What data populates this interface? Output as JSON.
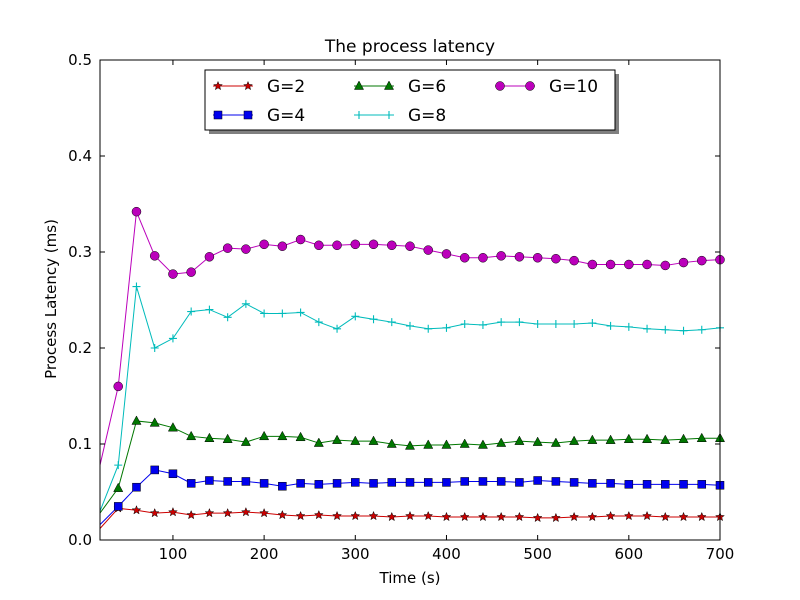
{
  "chart_data": {
    "type": "line",
    "title": "The process latency",
    "xlabel": "Time (s)",
    "ylabel": "Process Latency (ms)",
    "xlim": [
      20,
      700
    ],
    "ylim": [
      0.0,
      0.5
    ],
    "xticks": [
      100,
      200,
      300,
      400,
      500,
      600,
      700
    ],
    "yticks": [
      0.0,
      0.1,
      0.2,
      0.3,
      0.4,
      0.5
    ],
    "xtick_labels": [
      "100",
      "200",
      "300",
      "400",
      "500",
      "600",
      "700"
    ],
    "ytick_labels": [
      "0.0",
      "0.1",
      "0.2",
      "0.3",
      "0.4",
      "0.5"
    ],
    "grid": false,
    "legend_position": "top-center",
    "x": [
      20,
      40,
      60,
      80,
      100,
      120,
      140,
      160,
      180,
      200,
      220,
      240,
      260,
      280,
      300,
      320,
      340,
      360,
      380,
      400,
      420,
      440,
      460,
      480,
      500,
      520,
      540,
      560,
      580,
      600,
      620,
      640,
      660,
      680,
      700
    ],
    "series": [
      {
        "name": "G=2",
        "color": "#cc0000",
        "marker": "star",
        "values": [
          0.012,
          0.033,
          0.031,
          0.028,
          0.029,
          0.026,
          0.028,
          0.028,
          0.029,
          0.028,
          0.026,
          0.025,
          0.026,
          0.025,
          0.025,
          0.025,
          0.024,
          0.025,
          0.025,
          0.024,
          0.024,
          0.024,
          0.024,
          0.024,
          0.023,
          0.023,
          0.024,
          0.024,
          0.025,
          0.025,
          0.025,
          0.024,
          0.024,
          0.024,
          0.024
        ]
      },
      {
        "name": "G=4",
        "color": "#0000ee",
        "marker": "square",
        "values": [
          0.016,
          0.035,
          0.055,
          0.073,
          0.069,
          0.059,
          0.062,
          0.061,
          0.061,
          0.059,
          0.056,
          0.059,
          0.058,
          0.059,
          0.06,
          0.059,
          0.06,
          0.06,
          0.06,
          0.06,
          0.061,
          0.061,
          0.061,
          0.06,
          0.062,
          0.061,
          0.06,
          0.059,
          0.059,
          0.058,
          0.058,
          0.058,
          0.058,
          0.058,
          0.057
        ]
      },
      {
        "name": "G=6",
        "color": "#007700",
        "marker": "triangle",
        "values": [
          0.028,
          0.054,
          0.124,
          0.122,
          0.117,
          0.108,
          0.106,
          0.105,
          0.102,
          0.108,
          0.108,
          0.107,
          0.101,
          0.104,
          0.103,
          0.103,
          0.1,
          0.098,
          0.099,
          0.099,
          0.1,
          0.099,
          0.101,
          0.103,
          0.102,
          0.101,
          0.103,
          0.104,
          0.104,
          0.105,
          0.105,
          0.104,
          0.105,
          0.106,
          0.106
        ]
      },
      {
        "name": "G=8",
        "color": "#00bbbb",
        "marker": "plus",
        "values": [
          0.03,
          0.078,
          0.264,
          0.2,
          0.21,
          0.238,
          0.24,
          0.232,
          0.246,
          0.236,
          0.236,
          0.237,
          0.227,
          0.22,
          0.233,
          0.23,
          0.227,
          0.223,
          0.22,
          0.221,
          0.225,
          0.224,
          0.227,
          0.227,
          0.225,
          0.225,
          0.225,
          0.226,
          0.223,
          0.222,
          0.22,
          0.219,
          0.218,
          0.219,
          0.221
        ]
      },
      {
        "name": "G=10",
        "color": "#bb00bb",
        "marker": "circle",
        "values": [
          0.078,
          0.16,
          0.342,
          0.296,
          0.277,
          0.279,
          0.295,
          0.304,
          0.303,
          0.308,
          0.306,
          0.313,
          0.307,
          0.307,
          0.308,
          0.308,
          0.307,
          0.306,
          0.302,
          0.298,
          0.294,
          0.294,
          0.296,
          0.295,
          0.294,
          0.293,
          0.291,
          0.287,
          0.287,
          0.287,
          0.287,
          0.286,
          0.289,
          0.291,
          0.292
        ]
      }
    ]
  }
}
